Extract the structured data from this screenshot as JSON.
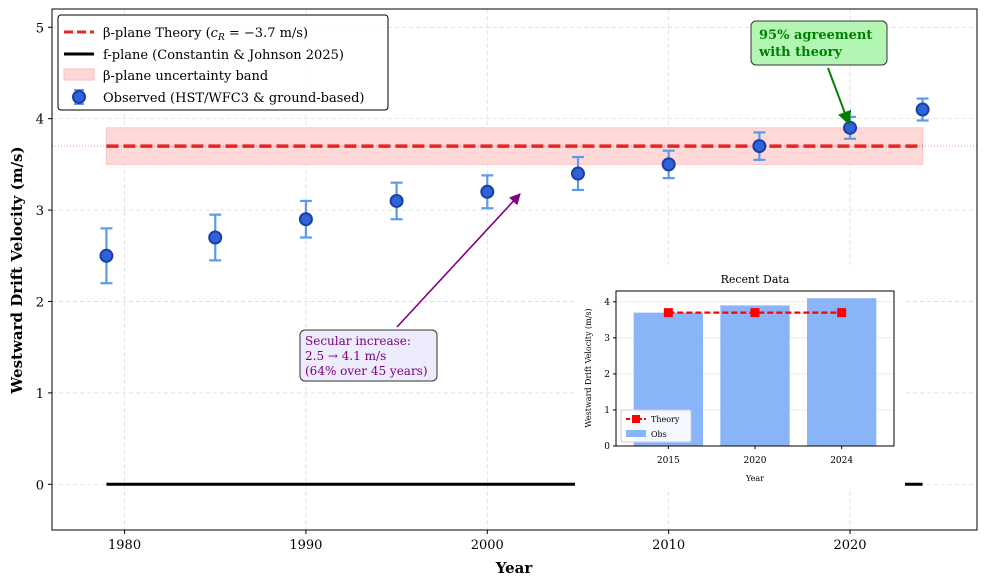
{
  "chart_data": [
    {
      "type": "scatter",
      "xlabel": "Year",
      "ylabel": "Westward Drift Velocity (m/s)",
      "xlim": [
        1976,
        2027
      ],
      "ylim": [
        -0.5,
        5.2
      ],
      "xticks": [
        1980,
        1990,
        2000,
        2010,
        2020
      ],
      "yticks": [
        0,
        1,
        2,
        3,
        4,
        5
      ],
      "grid": true,
      "legend_position": "top-left",
      "theory_band": {
        "x": [
          1979,
          2024
        ],
        "low": 3.5,
        "high": 3.9,
        "center": 3.7
      },
      "fplane": {
        "x": [
          1979,
          2024
        ],
        "y": [
          0,
          0
        ]
      },
      "series": [
        {
          "name": "Observed (HST/WFC3 & ground-based)",
          "x": [
            1979,
            1985,
            1990,
            1995,
            2000,
            2005,
            2010,
            2015,
            2020,
            2024
          ],
          "y": [
            2.5,
            2.7,
            2.9,
            3.1,
            3.2,
            3.4,
            3.5,
            3.7,
            3.9,
            4.1
          ],
          "err": [
            0.3,
            0.25,
            0.2,
            0.2,
            0.18,
            0.18,
            0.15,
            0.15,
            0.12,
            0.12
          ]
        }
      ],
      "legend": [
        {
          "key": "theory",
          "prefix": "β-plane Theory (",
          "math_c": "c",
          "math_sub": "R",
          "suffix": " = −3.7 m/s)"
        },
        {
          "key": "fplane",
          "label": "f-plane (Constantin & Johnson 2025)"
        },
        {
          "key": "band",
          "label": "β-plane uncertainty band"
        },
        {
          "key": "obs",
          "label": "Observed (HST/WFC3 & ground-based)"
        }
      ],
      "annotations": [
        {
          "key": "agreement",
          "lines": [
            "95% agreement",
            "with theory"
          ],
          "color": "#008000",
          "bg": "#b3f5b3",
          "arrow_to": [
            2020,
            3.9
          ]
        },
        {
          "key": "secular",
          "lines": [
            "Secular increase:",
            "2.5 → 4.1 m/s",
            "(64% over 45 years)"
          ],
          "color": "#800080",
          "bg": "#ececfc",
          "arrow_to": [
            2002,
            3.2
          ]
        }
      ],
      "colors": {
        "theory": "#e32626",
        "obs_face": "#2e63d9",
        "obs_edge": "#1a3fa8",
        "err": "#5b9bea",
        "band": "#ffd6d6",
        "fplane": "#000000"
      }
    },
    {
      "type": "bar",
      "title": "Recent Data",
      "xlabel": "Year",
      "ylabel": "Westward Drift Velocity (m/s)",
      "categories": [
        "2015",
        "2020",
        "2024"
      ],
      "ylim": [
        0,
        4.3
      ],
      "yticks": [
        0,
        1,
        2,
        3,
        4
      ],
      "series": [
        {
          "name": "Obs",
          "type": "bar",
          "values": [
            3.7,
            3.9,
            4.1
          ]
        },
        {
          "name": "Theory",
          "type": "line",
          "values": [
            3.7,
            3.7,
            3.7
          ]
        }
      ],
      "legend_position": "bottom-left",
      "colors": {
        "bar": "#8ab4f8",
        "theory": "#ff0000"
      }
    }
  ]
}
